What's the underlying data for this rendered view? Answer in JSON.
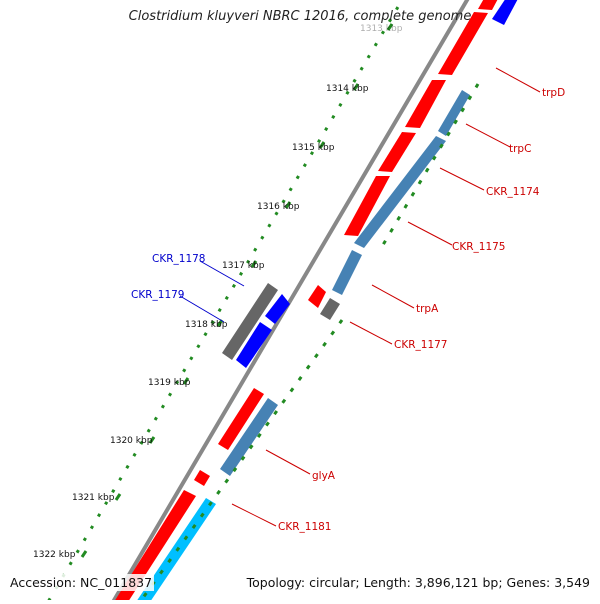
{
  "title": "Clostridium kluyveri NBRC 12016, complete genome",
  "footer": {
    "accession": "Accession: NC_011837",
    "summary": "Topology: circular; Length: 3,896,121 bp; Genes: 3,549"
  },
  "colors": {
    "backbone": "#888888",
    "forward_gene": "#ff0000",
    "reverse_gene": "#4682b4",
    "rna_gene": "#0000ff",
    "pseudo_gene": "#666666",
    "cyan_gene": "#00bfff",
    "tick": "#228b22",
    "label_red": "#cc0000",
    "label_blue": "#0000cc"
  },
  "scale_labels": [
    "1313 kbp",
    "1314 kbp",
    "1315 kbp",
    "1316 kbp",
    "1317 kbp",
    "1318 kbp",
    "1319 kbp",
    "1320 kbp",
    "1321 kbp",
    "1322 kbp"
  ],
  "gene_labels": [
    {
      "name": "trpD",
      "color": "red"
    },
    {
      "name": "trpC",
      "color": "red"
    },
    {
      "name": "CKR_1174",
      "color": "red"
    },
    {
      "name": "CKR_1175",
      "color": "red"
    },
    {
      "name": "trpA",
      "color": "red"
    },
    {
      "name": "CKR_1177",
      "color": "red"
    },
    {
      "name": "CKR_1178",
      "color": "blue"
    },
    {
      "name": "CKR_1179",
      "color": "blue"
    },
    {
      "name": "glyA",
      "color": "red"
    },
    {
      "name": "CKR_1181",
      "color": "red"
    }
  ]
}
